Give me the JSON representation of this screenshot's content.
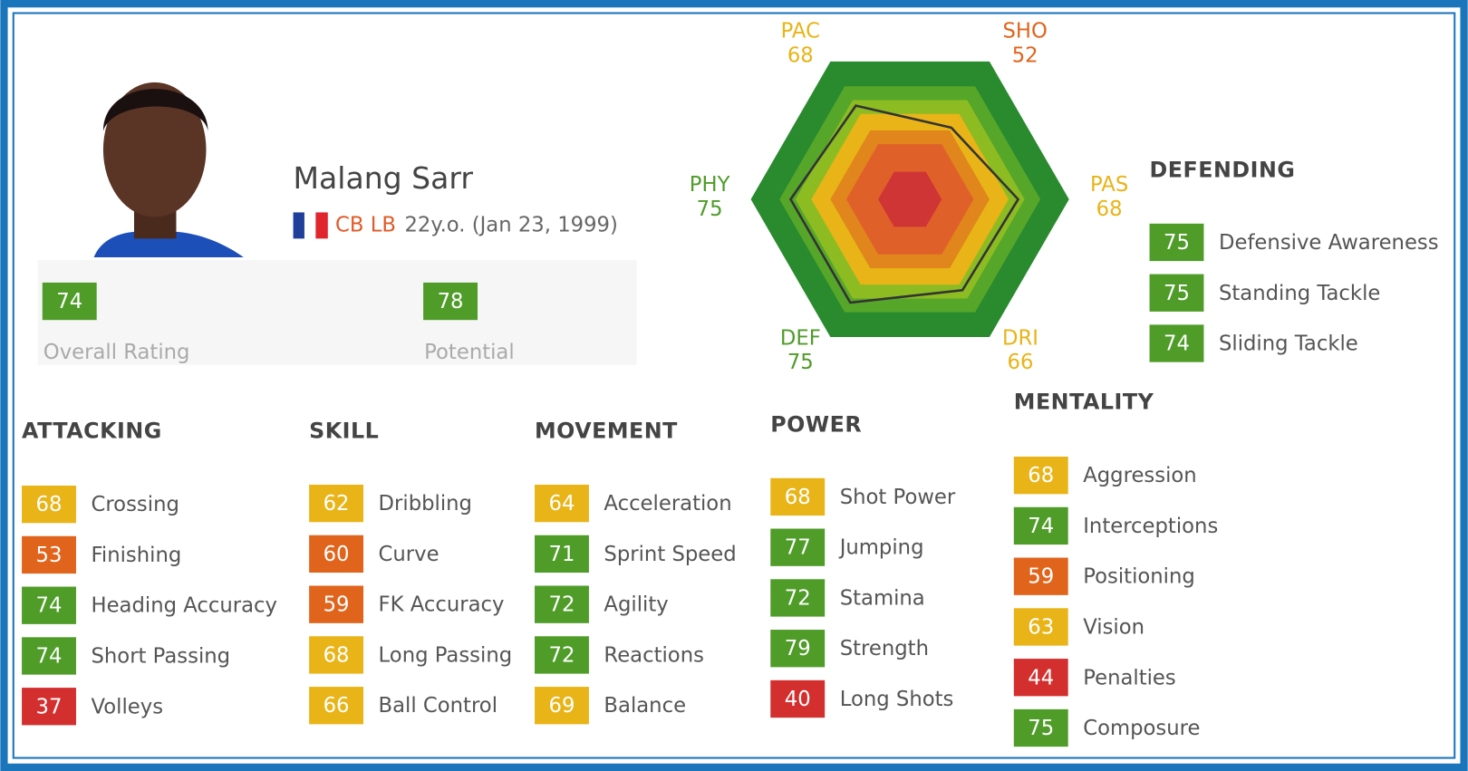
{
  "player": {
    "name": "Malang Sarr",
    "positions": "CB LB",
    "age_dob": "22y.o. (Jan 23, 1999)"
  },
  "ratings": [
    {
      "value": 74,
      "label": "Overall Rating"
    },
    {
      "value": 78,
      "label": "Potential"
    }
  ],
  "radar": {
    "rlim": [
      0,
      100
    ],
    "axes": [
      {
        "label": "PAC",
        "value": 68
      },
      {
        "label": "SHO",
        "value": 52
      },
      {
        "label": "PAS",
        "value": 68
      },
      {
        "label": "DRI",
        "value": 66
      },
      {
        "label": "DEF",
        "value": 75
      },
      {
        "label": "PHY",
        "value": 75
      }
    ]
  },
  "sections": [
    {
      "title": "ATTACKING",
      "items": [
        {
          "value": 68,
          "label": "Crossing"
        },
        {
          "value": 53,
          "label": "Finishing"
        },
        {
          "value": 74,
          "label": "Heading Accuracy"
        },
        {
          "value": 74,
          "label": "Short Passing"
        },
        {
          "value": 37,
          "label": "Volleys"
        }
      ]
    },
    {
      "title": "SKILL",
      "items": [
        {
          "value": 62,
          "label": "Dribbling"
        },
        {
          "value": 60,
          "label": "Curve"
        },
        {
          "value": 59,
          "label": "FK Accuracy"
        },
        {
          "value": 68,
          "label": "Long Passing"
        },
        {
          "value": 66,
          "label": "Ball Control"
        }
      ]
    },
    {
      "title": "MOVEMENT",
      "items": [
        {
          "value": 64,
          "label": "Acceleration"
        },
        {
          "value": 71,
          "label": "Sprint Speed"
        },
        {
          "value": 72,
          "label": "Agility"
        },
        {
          "value": 72,
          "label": "Reactions"
        },
        {
          "value": 69,
          "label": "Balance"
        }
      ]
    },
    {
      "title": "POWER",
      "items": [
        {
          "value": 68,
          "label": "Shot Power"
        },
        {
          "value": 77,
          "label": "Jumping"
        },
        {
          "value": 72,
          "label": "Stamina"
        },
        {
          "value": 79,
          "label": "Strength"
        },
        {
          "value": 40,
          "label": "Long Shots"
        }
      ]
    },
    {
      "title": "MENTALITY",
      "items": [
        {
          "value": 68,
          "label": "Aggression"
        },
        {
          "value": 74,
          "label": "Interceptions"
        },
        {
          "value": 59,
          "label": "Positioning"
        },
        {
          "value": 63,
          "label": "Vision"
        },
        {
          "value": 44,
          "label": "Penalties"
        },
        {
          "value": 75,
          "label": "Composure"
        }
      ]
    },
    {
      "title": "DEFENDING",
      "items": [
        {
          "value": 75,
          "label": "Defensive Awareness"
        },
        {
          "value": 75,
          "label": "Standing Tackle"
        },
        {
          "value": 74,
          "label": "Sliding Tackle"
        }
      ]
    }
  ]
}
